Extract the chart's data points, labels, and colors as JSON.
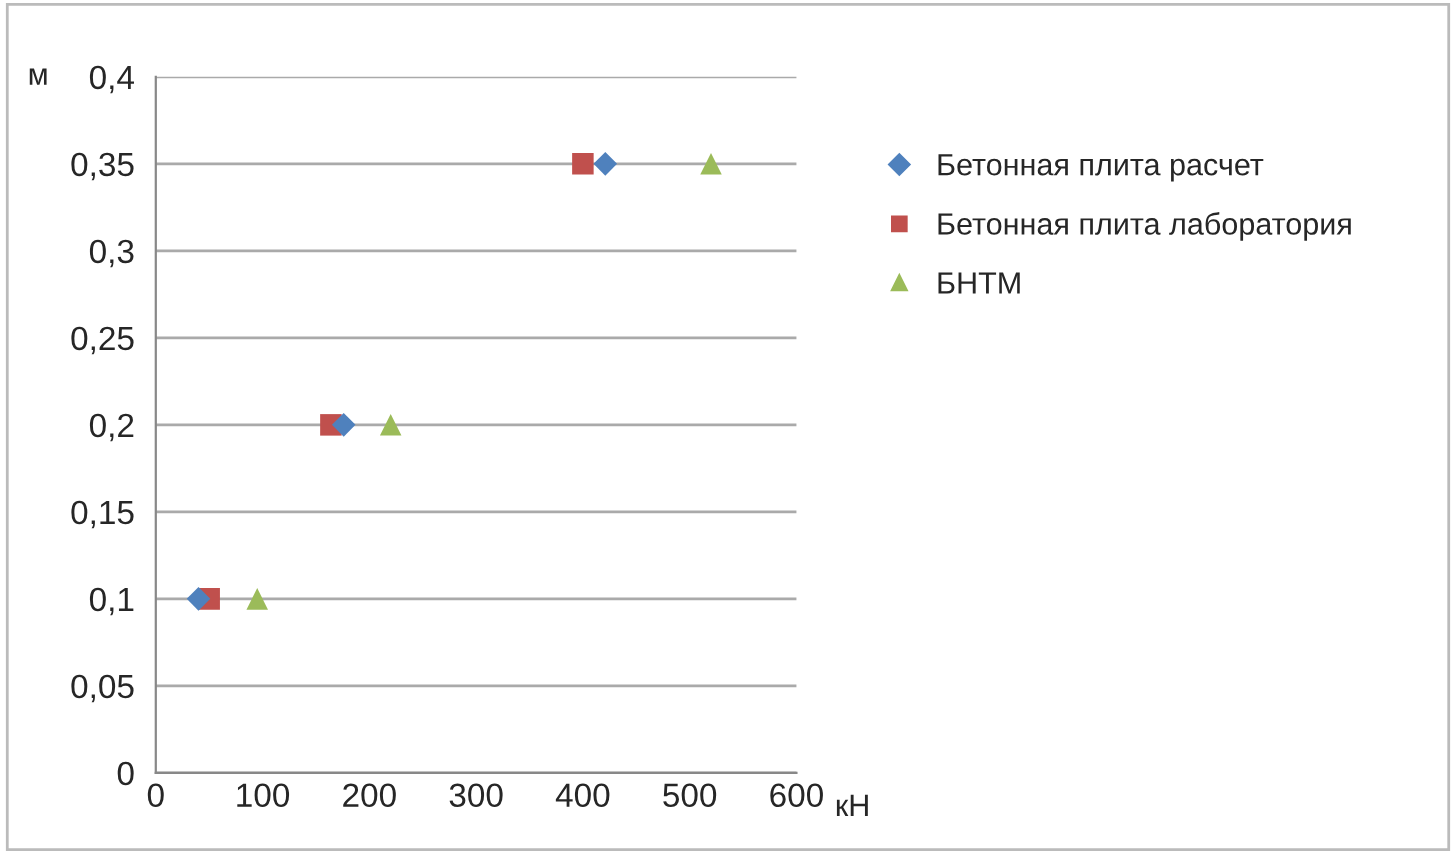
{
  "chart_data": {
    "type": "scatter",
    "xlabel": "кН",
    "ylabel": "м",
    "series": [
      {
        "name": "Бетонная плита расчет",
        "color": "#4f81bd",
        "marker": "diamond",
        "x": [
          40,
          176,
          421
        ],
        "values": [
          0.1,
          0.2,
          0.35
        ]
      },
      {
        "name": "Бетонная плита лаборатория",
        "color": "#c0504d",
        "marker": "square",
        "x": [
          50,
          164,
          400
        ],
        "values": [
          0.1,
          0.2,
          0.35
        ]
      },
      {
        "name": "БНТМ",
        "color": "#9bbb59",
        "marker": "triangle",
        "x": [
          95,
          220,
          520
        ],
        "values": [
          0.1,
          0.2,
          0.35
        ]
      }
    ],
    "xlim": [
      0,
      600
    ],
    "xticks": [
      0,
      100,
      200,
      300,
      400,
      500,
      600
    ],
    "ylim": [
      0,
      0.4
    ],
    "yticks": [
      {
        "value": 0,
        "label": "0"
      },
      {
        "value": 0.05,
        "label": "0,05"
      },
      {
        "value": 0.1,
        "label": "0,1"
      },
      {
        "value": 0.15,
        "label": "0,15"
      },
      {
        "value": 0.2,
        "label": "0,2"
      },
      {
        "value": 0.25,
        "label": "0,25"
      },
      {
        "value": 0.3,
        "label": "0,3"
      },
      {
        "value": 0.35,
        "label": "0,35"
      },
      {
        "value": 0.4,
        "label": "0,4"
      }
    ],
    "grid": "y",
    "legend": "right"
  }
}
